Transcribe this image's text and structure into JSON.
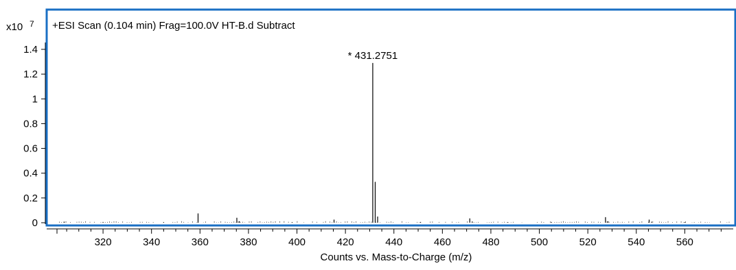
{
  "colors": {
    "frame": "#1a6fc4",
    "axis": "#000000",
    "peak": "#000000",
    "background": "#ffffff"
  },
  "chart_data": {
    "type": "bar",
    "title": "+ESI Scan (0.104 min) Frag=100.0V HT-B.d  Subtract",
    "xlabel": "Counts vs. Mass-to-Charge (m/z)",
    "ylabel": "",
    "y_multiplier_label": {
      "base": "x10",
      "exponent": "7"
    },
    "xlim": [
      301,
      580
    ],
    "ylim": [
      0,
      1.5
    ],
    "x_ticks": [
      {
        "value": 320,
        "label": "320"
      },
      {
        "value": 340,
        "label": "340"
      },
      {
        "value": 360,
        "label": "360"
      },
      {
        "value": 380,
        "label": "380"
      },
      {
        "value": 400,
        "label": "400"
      },
      {
        "value": 420,
        "label": "420"
      },
      {
        "value": 440,
        "label": "440"
      },
      {
        "value": 460,
        "label": "460"
      },
      {
        "value": 480,
        "label": "480"
      },
      {
        "value": 500,
        "label": "500"
      },
      {
        "value": 520,
        "label": "520"
      },
      {
        "value": 540,
        "label": "540"
      },
      {
        "value": 560,
        "label": "560"
      }
    ],
    "y_ticks": [
      {
        "value": 0,
        "label": "0"
      },
      {
        "value": 0.2,
        "label": "0.2"
      },
      {
        "value": 0.4,
        "label": "0.4"
      },
      {
        "value": 0.6,
        "label": "0.6"
      },
      {
        "value": 0.8,
        "label": "0.8"
      },
      {
        "value": 1.0,
        "label": "1"
      },
      {
        "value": 1.2,
        "label": "1.2"
      },
      {
        "value": 1.4,
        "label": "1.4"
      }
    ],
    "peaks": [
      {
        "mz": 431.2751,
        "intensity": 1.29
      },
      {
        "mz": 432.28,
        "intensity": 0.33
      },
      {
        "mz": 433.28,
        "intensity": 0.05
      },
      {
        "mz": 359.2,
        "intensity": 0.075
      },
      {
        "mz": 375.2,
        "intensity": 0.04
      },
      {
        "mz": 376.2,
        "intensity": 0.012
      },
      {
        "mz": 415.3,
        "intensity": 0.025
      },
      {
        "mz": 471.3,
        "intensity": 0.035
      },
      {
        "mz": 472.3,
        "intensity": 0.01
      },
      {
        "mz": 527.3,
        "intensity": 0.045
      },
      {
        "mz": 528.3,
        "intensity": 0.012
      },
      {
        "mz": 545.3,
        "intensity": 0.025
      },
      {
        "mz": 546.3,
        "intensity": 0.008
      },
      {
        "mz": 304.0,
        "intensity": 0.008
      },
      {
        "mz": 320.0,
        "intensity": 0.006
      },
      {
        "mz": 345.0,
        "intensity": 0.005
      },
      {
        "mz": 398.0,
        "intensity": 0.005
      },
      {
        "mz": 451.0,
        "intensity": 0.006
      },
      {
        "mz": 487.0,
        "intensity": 0.005
      },
      {
        "mz": 505.0,
        "intensity": 0.006
      },
      {
        "mz": 560.0,
        "intensity": 0.005
      }
    ],
    "annotations": [
      {
        "text": "* 431.2751",
        "x": 431.2751,
        "y": 1.29
      }
    ],
    "grid": false,
    "legend": "none"
  }
}
